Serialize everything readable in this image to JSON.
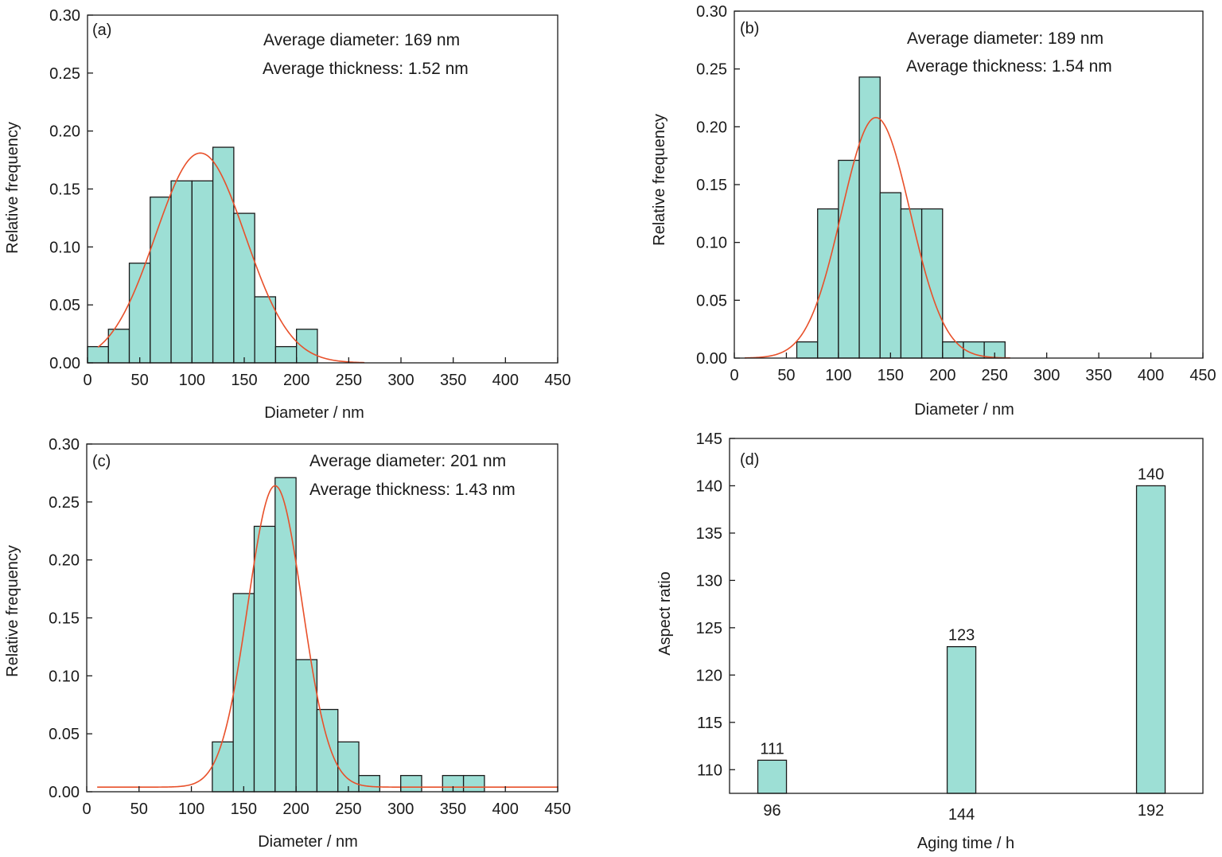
{
  "chart_data": [
    {
      "type": "bar",
      "panel_label": "(a)",
      "annotations": [
        "Average diameter: 169 nm",
        "Average thickness: 1.52 nm"
      ],
      "xlabel": "Diameter / nm",
      "ylabel": "Relative frequency",
      "xlim": [
        0,
        450
      ],
      "ylim": [
        0,
        0.3
      ],
      "xticks": [
        0,
        50,
        100,
        150,
        200,
        250,
        300,
        350,
        400,
        450
      ],
      "yticks": [
        "0.00",
        "0.05",
        "0.10",
        "0.15",
        "0.20",
        "0.25",
        "0.30"
      ],
      "bin_width": 20,
      "bins": [
        {
          "start": 0,
          "value": 0.014
        },
        {
          "start": 20,
          "value": 0.029
        },
        {
          "start": 40,
          "value": 0.086
        },
        {
          "start": 60,
          "value": 0.143
        },
        {
          "start": 80,
          "value": 0.157
        },
        {
          "start": 100,
          "value": 0.157
        },
        {
          "start": 120,
          "value": 0.186
        },
        {
          "start": 140,
          "value": 0.129
        },
        {
          "start": 160,
          "value": 0.057
        },
        {
          "start": 180,
          "value": 0.014
        },
        {
          "start": 200,
          "value": 0.029
        }
      ],
      "fit": {
        "type": "gaussian",
        "mean": 108,
        "sd": 43,
        "peak": 0.181,
        "x_from": 10,
        "x_to": 265
      },
      "colors": {
        "bar": "#9ddfd5",
        "fit": "#e8502a"
      }
    },
    {
      "type": "bar",
      "panel_label": "(b)",
      "annotations": [
        "Average diameter: 189 nm",
        "Average thickness: 1.54 nm"
      ],
      "xlabel": "Diameter / nm",
      "ylabel": "Relative frequency",
      "xlim": [
        0,
        450
      ],
      "ylim": [
        0,
        0.3
      ],
      "xticks": [
        0,
        50,
        100,
        150,
        200,
        250,
        300,
        350,
        400,
        450
      ],
      "yticks": [
        "0.00",
        "0.05",
        "0.10",
        "0.15",
        "0.20",
        "0.25",
        "0.30"
      ],
      "bin_width": 20,
      "bins": [
        {
          "start": 60,
          "value": 0.014
        },
        {
          "start": 80,
          "value": 0.129
        },
        {
          "start": 100,
          "value": 0.171
        },
        {
          "start": 120,
          "value": 0.243
        },
        {
          "start": 140,
          "value": 0.143
        },
        {
          "start": 160,
          "value": 0.129
        },
        {
          "start": 180,
          "value": 0.129
        },
        {
          "start": 200,
          "value": 0.014
        },
        {
          "start": 220,
          "value": 0.014
        },
        {
          "start": 240,
          "value": 0.014
        }
      ],
      "fit": {
        "type": "gaussian",
        "mean": 136,
        "sd": 33,
        "peak": 0.208,
        "x_from": 10,
        "x_to": 265
      },
      "colors": {
        "bar": "#9ddfd5",
        "fit": "#e8502a"
      }
    },
    {
      "type": "bar",
      "panel_label": "(c)",
      "annotations": [
        "Average diameter: 201 nm",
        "Average thickness: 1.43 nm"
      ],
      "xlabel": "Diameter / nm",
      "ylabel": "Relative frequency",
      "xlim": [
        0,
        450
      ],
      "ylim": [
        0,
        0.3
      ],
      "xticks": [
        0,
        50,
        100,
        150,
        200,
        250,
        300,
        350,
        400,
        450
      ],
      "yticks": [
        "0.00",
        "0.05",
        "0.10",
        "0.15",
        "0.20",
        "0.25",
        "0.30"
      ],
      "bin_width": 20,
      "bins": [
        {
          "start": 120,
          "value": 0.043
        },
        {
          "start": 140,
          "value": 0.171
        },
        {
          "start": 160,
          "value": 0.229
        },
        {
          "start": 180,
          "value": 0.271
        },
        {
          "start": 200,
          "value": 0.114
        },
        {
          "start": 220,
          "value": 0.071
        },
        {
          "start": 240,
          "value": 0.043
        },
        {
          "start": 260,
          "value": 0.014
        },
        {
          "start": 300,
          "value": 0.014
        },
        {
          "start": 340,
          "value": 0.014
        },
        {
          "start": 360,
          "value": 0.014
        }
      ],
      "fit": {
        "type": "gaussian",
        "mean": 180,
        "sd": 26,
        "peak": 0.26,
        "baseline": 0.004,
        "x_from": 10,
        "x_to": 450
      },
      "colors": {
        "bar": "#9ddfd5",
        "fit": "#e8502a"
      }
    },
    {
      "type": "bar",
      "panel_label": "(d)",
      "xlabel": "Aging time / h",
      "ylabel": "Aspect ratio",
      "categories": [
        "96",
        "144",
        "192"
      ],
      "values": [
        111,
        123,
        140
      ],
      "data_labels": [
        "111",
        "123",
        "140"
      ],
      "ylim": [
        107.5,
        145
      ],
      "yticks": [
        "110",
        "115",
        "120",
        "125",
        "130",
        "135",
        "140",
        "145"
      ],
      "colors": {
        "bar": "#9ddfd5"
      }
    }
  ]
}
